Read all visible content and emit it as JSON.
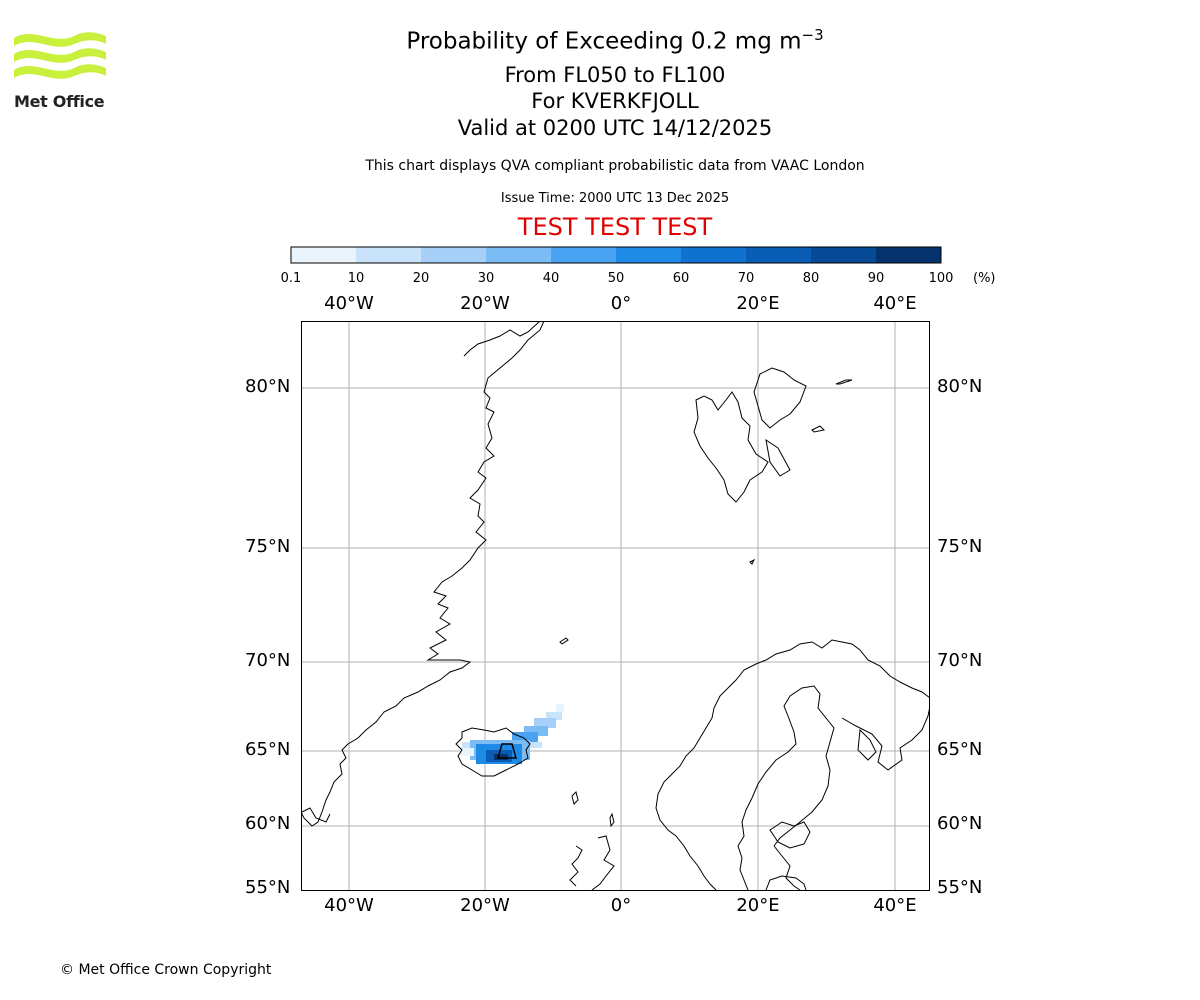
{
  "title": {
    "line1_prefix": "Probability of Exceeding 0.2 mg m",
    "line1_sup": "−3",
    "line2": "From FL050 to FL100",
    "line3": "For KVERKFJOLL",
    "line4": "Valid at 0200 UTC 14/12/2025",
    "subtitle": "This chart displays QVA compliant probabilistic data from VAAC London",
    "issue_time": "Issue Time: 2000 UTC 13 Dec 2025",
    "test_banner": "TEST TEST TEST"
  },
  "logo": {
    "text": "Met Office",
    "color": "#c8f03c"
  },
  "colorbar": {
    "unit": "(%)",
    "ticks": [
      "0.1",
      "10",
      "20",
      "30",
      "40",
      "50",
      "60",
      "70",
      "80",
      "90",
      "100"
    ],
    "colors": [
      "#eaf4fd",
      "#c9e3fb",
      "#a6d0f8",
      "#7cbcf5",
      "#4aa3f2",
      "#1f8ae6",
      "#0f72d1",
      "#0a5db4",
      "#064994",
      "#03326d"
    ]
  },
  "map": {
    "lon_labels": [
      "40°W",
      "20°W",
      "0°",
      "20°E",
      "40°E"
    ],
    "lat_labels": [
      "80°N",
      "75°N",
      "70°N",
      "65°N",
      "60°N",
      "55°N"
    ],
    "grid_color": "#b0b0b0"
  },
  "footer": {
    "copyright": "© Met Office Crown Copyright"
  }
}
